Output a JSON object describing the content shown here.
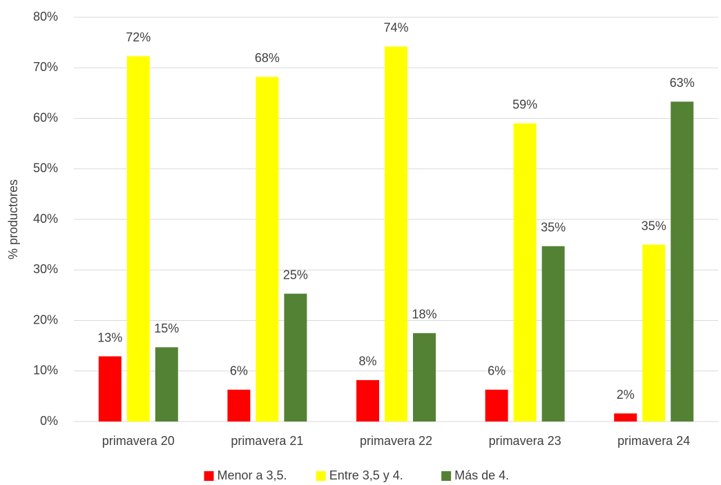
{
  "chart_data": {
    "type": "bar",
    "y_label": "% productores",
    "categories": [
      "primavera 20",
      "primavera 21",
      "primavera 22",
      "primavera 23",
      "primavera 24"
    ],
    "series": [
      {
        "name": "Menor a 3,5.",
        "color": "#ff0000",
        "values": [
          12.9,
          6.3,
          8.2,
          6.3,
          1.6
        ],
        "value_labels": [
          "13%",
          "6%",
          "8%",
          "6%",
          "2%"
        ]
      },
      {
        "name": "Entre 3,5 y 4.",
        "color": "#ffff00",
        "values": [
          72.3,
          68.2,
          74.2,
          59.0,
          35.0
        ],
        "value_labels": [
          "72%",
          "68%",
          "74%",
          "59%",
          "35%"
        ]
      },
      {
        "name": "Más de 4.",
        "color": "#548235",
        "values": [
          14.7,
          25.3,
          17.5,
          34.7,
          63.3
        ],
        "value_labels": [
          "15%",
          "25%",
          "18%",
          "35%",
          "63%"
        ]
      }
    ],
    "ylim": [
      0,
      80
    ],
    "yticks": [
      {
        "value": 0,
        "label": "0%"
      },
      {
        "value": 10,
        "label": "10%"
      },
      {
        "value": 20,
        "label": "20%"
      },
      {
        "value": 30,
        "label": "30%"
      },
      {
        "value": 40,
        "label": "40%"
      },
      {
        "value": 50,
        "label": "50%"
      },
      {
        "value": 60,
        "label": "60%"
      },
      {
        "value": 70,
        "label": "70%"
      },
      {
        "value": 80,
        "label": "80%"
      }
    ],
    "grid": true,
    "legend": "bottom"
  }
}
